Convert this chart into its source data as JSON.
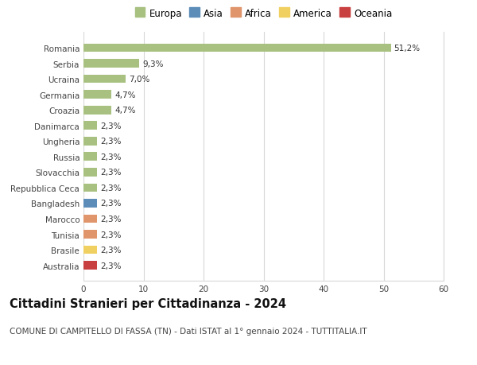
{
  "title": "Cittadini Stranieri per Cittadinanza - 2024",
  "subtitle": "COMUNE DI CAMPITELLO DI FASSA (TN) - Dati ISTAT al 1° gennaio 2024 - TUTTITALIA.IT",
  "categories": [
    "Romania",
    "Serbia",
    "Ucraina",
    "Germania",
    "Croazia",
    "Danimarca",
    "Ungheria",
    "Russia",
    "Slovacchia",
    "Repubblica Ceca",
    "Bangladesh",
    "Marocco",
    "Tunisia",
    "Brasile",
    "Australia"
  ],
  "values": [
    51.2,
    9.3,
    7.0,
    4.7,
    4.7,
    2.3,
    2.3,
    2.3,
    2.3,
    2.3,
    2.3,
    2.3,
    2.3,
    2.3,
    2.3
  ],
  "labels": [
    "51,2%",
    "9,3%",
    "7,0%",
    "4,7%",
    "4,7%",
    "2,3%",
    "2,3%",
    "2,3%",
    "2,3%",
    "2,3%",
    "2,3%",
    "2,3%",
    "2,3%",
    "2,3%",
    "2,3%"
  ],
  "continent": [
    "Europa",
    "Europa",
    "Europa",
    "Europa",
    "Europa",
    "Europa",
    "Europa",
    "Europa",
    "Europa",
    "Europa",
    "Asia",
    "Africa",
    "Africa",
    "America",
    "Oceania"
  ],
  "continent_colors": {
    "Europa": "#a8c080",
    "Asia": "#5b8db8",
    "Africa": "#e0956a",
    "America": "#f0d060",
    "Oceania": "#c94040"
  },
  "legend_items": [
    "Europa",
    "Asia",
    "Africa",
    "America",
    "Oceania"
  ],
  "legend_colors": [
    "#a8c080",
    "#5b8db8",
    "#e0956a",
    "#f0d060",
    "#c94040"
  ],
  "xlim": [
    0,
    60
  ],
  "xticks": [
    0,
    10,
    20,
    30,
    40,
    50,
    60
  ],
  "background_color": "#ffffff",
  "grid_color": "#d8d8d8",
  "bar_height": 0.55,
  "title_fontsize": 10.5,
  "subtitle_fontsize": 7.5,
  "label_fontsize": 7.5,
  "tick_fontsize": 7.5,
  "legend_fontsize": 8.5
}
